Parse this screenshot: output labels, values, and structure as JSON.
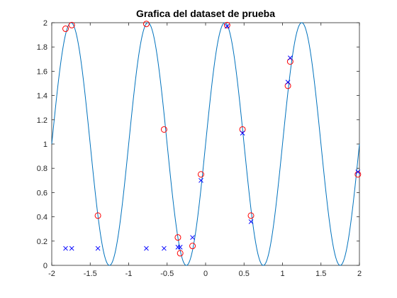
{
  "chart_data": {
    "type": "scatter",
    "title": "Grafica del dataset de prueba",
    "xlabel": "",
    "ylabel": "",
    "xlim": [
      -2,
      2
    ],
    "ylim": [
      0,
      2
    ],
    "grid": false,
    "x_ticks": [
      "-2",
      "-1.5",
      "-1",
      "-0.5",
      "0",
      "0.5",
      "1",
      "1.5",
      "2"
    ],
    "y_ticks": [
      "0",
      "0.2",
      "0.4",
      "0.6",
      "0.8",
      "1",
      "1.2",
      "1.4",
      "1.6",
      "1.8",
      "2"
    ],
    "curve": {
      "function": "1 + sin(2*pi*x)",
      "x_range": [
        -2,
        2
      ],
      "color": "#0072bd"
    },
    "series": [
      {
        "marker": "circle",
        "color": "#ff0000",
        "points": [
          [
            -1.82,
            1.95
          ],
          [
            -1.74,
            1.98
          ],
          [
            -1.4,
            0.41
          ],
          [
            -0.77,
            1.99
          ],
          [
            -0.54,
            1.12
          ],
          [
            -0.36,
            0.23
          ],
          [
            -0.33,
            0.1
          ],
          [
            -0.17,
            0.16
          ],
          [
            -0.06,
            0.75
          ],
          [
            0.28,
            1.98
          ],
          [
            0.48,
            1.12
          ],
          [
            0.59,
            0.41
          ],
          [
            1.07,
            1.48
          ],
          [
            1.1,
            1.68
          ],
          [
            1.98,
            0.75
          ]
        ]
      },
      {
        "marker": "x",
        "color": "#0000ff",
        "points": [
          [
            -1.82,
            0.14
          ],
          [
            -1.74,
            0.14
          ],
          [
            -1.4,
            0.14
          ],
          [
            -0.77,
            0.14
          ],
          [
            -0.54,
            0.14
          ],
          [
            -0.36,
            0.15
          ],
          [
            -0.33,
            0.15
          ],
          [
            -0.17,
            0.23
          ],
          [
            -0.06,
            0.7
          ],
          [
            0.28,
            1.97
          ],
          [
            0.48,
            1.09
          ],
          [
            0.59,
            0.36
          ],
          [
            1.07,
            1.51
          ],
          [
            1.1,
            1.71
          ],
          [
            1.98,
            0.77
          ]
        ]
      }
    ]
  }
}
